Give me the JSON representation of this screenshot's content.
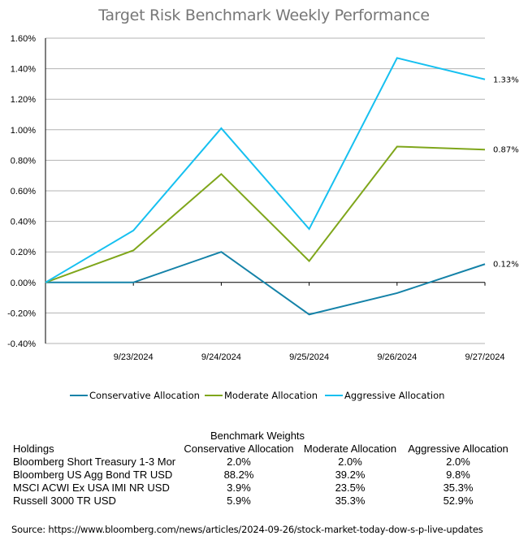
{
  "chart_data": {
    "type": "line",
    "title": "Target Risk Benchmark Weekly Performance",
    "xlabel": "",
    "ylabel": "",
    "x": [
      "",
      "9/23/2024",
      "9/24/2024",
      "9/25/2024",
      "9/26/2024",
      "9/27/2024"
    ],
    "ylim": [
      -0.4,
      1.6
    ],
    "yticks": [
      "1.60%",
      "1.40%",
      "1.20%",
      "1.00%",
      "0.80%",
      "0.60%",
      "0.40%",
      "0.20%",
      "0.00%",
      "-0.20%",
      "-0.40%"
    ],
    "ytick_values": [
      1.6,
      1.4,
      1.2,
      1.0,
      0.8,
      0.6,
      0.4,
      0.2,
      0.0,
      -0.2,
      -0.4
    ],
    "grid": true,
    "legend_position": "bottom",
    "series": [
      {
        "name": "Conservative Allocation",
        "color": "#1482A8",
        "values": [
          0.0,
          0.0,
          0.2,
          -0.21,
          -0.07,
          0.12
        ],
        "end_label": "0.12%"
      },
      {
        "name": "Moderate Allocation",
        "color": "#7FA61B",
        "values": [
          0.0,
          0.21,
          0.71,
          0.14,
          0.89,
          0.87
        ],
        "end_label": "0.87%"
      },
      {
        "name": "Aggressive Allocation",
        "color": "#16C0F0",
        "values": [
          0.0,
          0.34,
          1.01,
          0.35,
          1.47,
          1.33
        ],
        "end_label": "1.33%"
      }
    ]
  },
  "weights_table": {
    "group_title": "Benchmark Weights",
    "headers": [
      "Holdings",
      "Conservative Allocation",
      "Moderate Allocation",
      "Aggressive Allocation"
    ],
    "rows": [
      [
        "Bloomberg Short Treasury 1-3 Mor",
        "2.0%",
        "2.0%",
        "2.0%"
      ],
      [
        "Bloomberg US Agg Bond TR USD",
        "88.2%",
        "39.2%",
        "9.8%"
      ],
      [
        "MSCI ACWI Ex USA IMI NR USD",
        "3.9%",
        "23.5%",
        "35.3%"
      ],
      [
        "Russell 3000 TR USD",
        "5.9%",
        "35.3%",
        "52.9%"
      ]
    ]
  },
  "source": "Source: https://www.bloomberg.com/news/articles/2024-09-26/stock-market-today-dow-s-p-live-updates"
}
